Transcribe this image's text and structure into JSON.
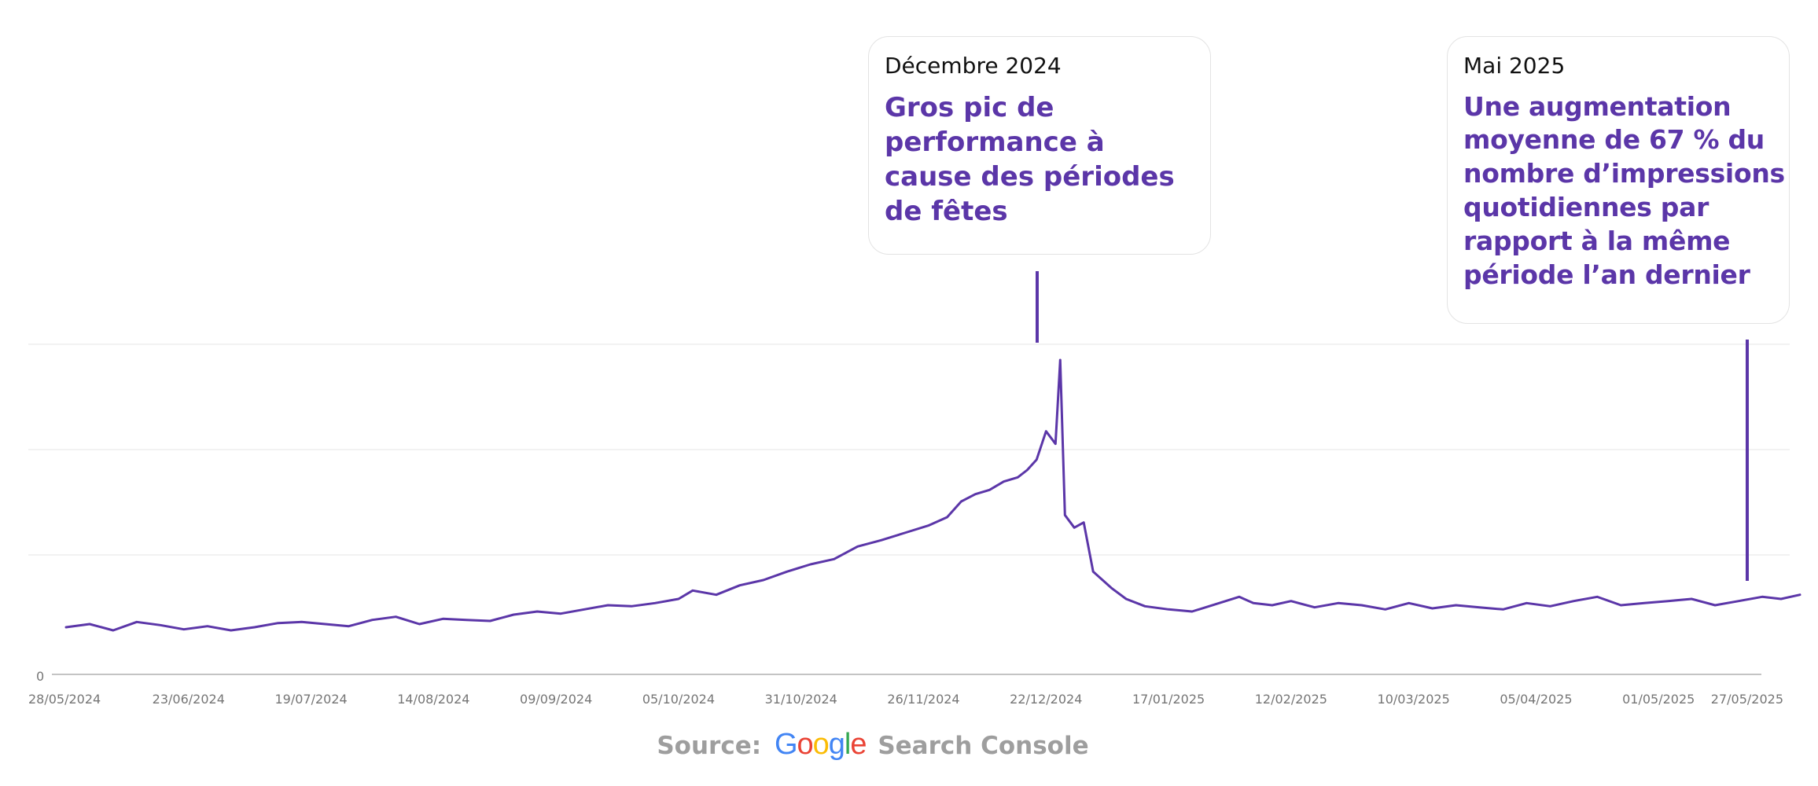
{
  "chart_data": {
    "type": "line",
    "y_zero_label": "0",
    "x_tick_labels": [
      "28/05/2024",
      "23/06/2024",
      "19/07/2024",
      "14/08/2024",
      "09/09/2024",
      "05/10/2024",
      "31/10/2024",
      "26/11/2024",
      "22/12/2024",
      "17/01/2025",
      "12/02/2025",
      "10/03/2025",
      "05/04/2025",
      "01/05/2025",
      "27/05/2025"
    ],
    "ylim": [
      0,
      315
    ],
    "grid": "horizontal",
    "line_color": "#5b36a8",
    "series": [
      {
        "x": [
          "2024-05-28",
          "2024-06-02",
          "2024-06-07",
          "2024-06-12",
          "2024-06-17",
          "2024-06-22",
          "2024-06-27",
          "2024-07-02",
          "2024-07-07",
          "2024-07-12",
          "2024-07-17",
          "2024-07-22",
          "2024-07-27",
          "2024-08-01",
          "2024-08-06",
          "2024-08-11",
          "2024-08-16",
          "2024-08-21",
          "2024-08-26",
          "2024-08-31",
          "2024-09-05",
          "2024-09-10",
          "2024-09-15",
          "2024-09-20",
          "2024-09-25",
          "2024-09-30",
          "2024-10-05",
          "2024-10-08",
          "2024-10-13",
          "2024-10-18",
          "2024-10-23",
          "2024-10-28",
          "2024-11-02",
          "2024-11-07",
          "2024-11-12",
          "2024-11-17",
          "2024-11-22",
          "2024-11-27",
          "2024-12-01",
          "2024-12-04",
          "2024-12-07",
          "2024-12-10",
          "2024-12-13",
          "2024-12-16",
          "2024-12-18",
          "2024-12-20",
          "2024-12-22",
          "2024-12-24",
          "2024-12-25",
          "2024-12-26",
          "2024-12-28",
          "2024-12-30",
          "2025-01-01",
          "2025-01-03",
          "2025-01-05",
          "2025-01-08",
          "2025-01-12",
          "2025-01-17",
          "2025-01-22",
          "2025-01-27",
          "2025-02-01",
          "2025-02-04",
          "2025-02-08",
          "2025-02-12",
          "2025-02-17",
          "2025-02-22",
          "2025-02-27",
          "2025-03-04",
          "2025-03-09",
          "2025-03-14",
          "2025-03-19",
          "2025-03-24",
          "2025-03-29",
          "2025-04-03",
          "2025-04-08",
          "2025-04-13",
          "2025-04-18",
          "2025-04-23",
          "2025-04-28",
          "2025-05-03",
          "2025-05-08",
          "2025-05-13",
          "2025-05-18",
          "2025-05-23",
          "2025-05-27",
          "2025-05-31"
        ],
        "y": [
          45,
          48,
          42,
          50,
          47,
          43,
          46,
          42,
          45,
          49,
          50,
          48,
          46,
          52,
          55,
          48,
          53,
          52,
          51,
          57,
          60,
          58,
          62,
          66,
          65,
          68,
          72,
          80,
          76,
          85,
          90,
          98,
          105,
          110,
          122,
          128,
          135,
          142,
          150,
          165,
          172,
          176,
          184,
          188,
          195,
          205,
          232,
          220,
          300,
          152,
          140,
          145,
          98,
          90,
          82,
          72,
          65,
          62,
          60,
          67,
          74,
          68,
          66,
          70,
          64,
          68,
          66,
          62,
          68,
          63,
          66,
          64,
          62,
          68,
          65,
          70,
          74,
          66,
          68,
          70,
          72,
          66,
          70,
          74,
          72,
          76
        ]
      }
    ],
    "annotations": [
      {
        "date_label": "Décembre 2024",
        "text": "Gros pic de performance à cause des périodes de fêtes"
      },
      {
        "date_label": "Mai 2025",
        "text_lines": [
          "Une augmentation",
          "moyenne de 67 % du",
          "nombre d’impressions",
          "quotidiennes par",
          "rapport à la même",
          "période l’an dernier"
        ]
      }
    ]
  },
  "source": {
    "prefix": "Source:",
    "logo_text": "Google",
    "suffix": "Search Console"
  }
}
